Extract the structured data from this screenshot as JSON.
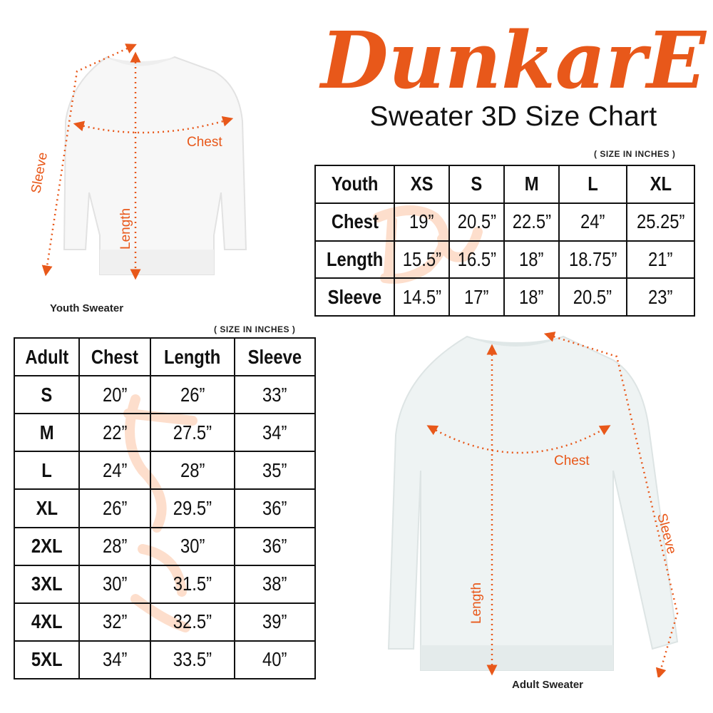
{
  "brand": {
    "logo_text": "DunkarE",
    "color": "#E8581A"
  },
  "title": "Sweater 3D Size Chart",
  "youth": {
    "note": "( SIZE IN INCHES )",
    "caption": "Youth Sweater",
    "headers": [
      "Youth",
      "XS",
      "S",
      "M",
      "L",
      "XL"
    ],
    "rows": [
      [
        "Chest",
        "19”",
        "20.5”",
        "22.5”",
        "24”",
        "25.25”"
      ],
      [
        "Length",
        "15.5”",
        "16.5”",
        "18”",
        "18.75”",
        "21”"
      ],
      [
        "Sleeve",
        "14.5”",
        "17”",
        "18”",
        "20.5”",
        "23”"
      ]
    ],
    "diagram_labels": {
      "chest": "Chest",
      "length": "Length",
      "sleeve": "Sleeve"
    }
  },
  "adult": {
    "note": "( SIZE IN INCHES )",
    "caption": "Adult Sweater",
    "headers": [
      "Adult",
      "Chest",
      "Length",
      "Sleeve"
    ],
    "rows": [
      [
        "S",
        "20”",
        "26”",
        "33”"
      ],
      [
        "M",
        "22”",
        "27.5”",
        "34”"
      ],
      [
        "L",
        "24”",
        "28”",
        "35”"
      ],
      [
        "XL",
        "26”",
        "29.5”",
        "36”"
      ],
      [
        "2XL",
        "28”",
        "30”",
        "36”"
      ],
      [
        "3XL",
        "30”",
        "31.5”",
        "38”"
      ],
      [
        "4XL",
        "32”",
        "32.5”",
        "39”"
      ],
      [
        "5XL",
        "34”",
        "33.5”",
        "40”"
      ]
    ],
    "diagram_labels": {
      "chest": "Chest",
      "length": "Length",
      "sleeve": "Sleeve"
    }
  }
}
